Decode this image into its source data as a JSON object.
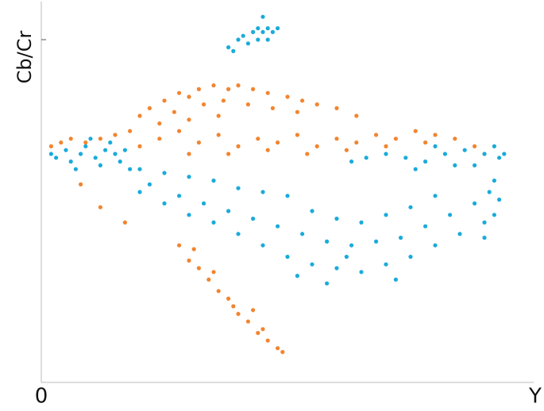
{
  "chart_data": {
    "type": "scatter",
    "ylabel": "Cb/Cr",
    "xlabel": "Y",
    "xlim": [
      0,
      1
    ],
    "ylim": [
      0,
      1
    ],
    "xticks": [
      0
    ],
    "yticks": [
      0.9
    ],
    "series": [
      {
        "color": "#f28530",
        "x": [
          0.22,
          0.25,
          0.28,
          0.3,
          0.32,
          0.35,
          0.38,
          0.4,
          0.43,
          0.46,
          0.5,
          0.53,
          0.56,
          0.6,
          0.64,
          0.27,
          0.33,
          0.37,
          0.42,
          0.47,
          0.52,
          0.3,
          0.36,
          0.24,
          0.2,
          0.24,
          0.28,
          0.32,
          0.36,
          0.4,
          0.44,
          0.48,
          0.52,
          0.56,
          0.6,
          0.64,
          0.68,
          0.72,
          0.76,
          0.8,
          0.84,
          0.88,
          0.9,
          0.3,
          0.38,
          0.46,
          0.54,
          0.62,
          0.7,
          0.78,
          0.02,
          0.04,
          0.06,
          0.09,
          0.12,
          0.15,
          0.18,
          0.2,
          0.08,
          0.12,
          0.17,
          0.28,
          0.3,
          0.32,
          0.34,
          0.36,
          0.38,
          0.4,
          0.42,
          0.44,
          0.46,
          0.48,
          0.49,
          0.45,
          0.43,
          0.39,
          0.35,
          0.31
        ],
        "values": [
          0.72,
          0.74,
          0.76,
          0.75,
          0.77,
          0.78,
          0.77,
          0.78,
          0.77,
          0.76,
          0.75,
          0.74,
          0.73,
          0.72,
          0.7,
          0.71,
          0.73,
          0.74,
          0.73,
          0.72,
          0.71,
          0.69,
          0.7,
          0.68,
          0.7,
          0.64,
          0.66,
          0.63,
          0.65,
          0.62,
          0.64,
          0.63,
          0.65,
          0.62,
          0.64,
          0.63,
          0.65,
          0.64,
          0.66,
          0.65,
          0.64,
          0.62,
          0.6,
          0.6,
          0.6,
          0.61,
          0.6,
          0.61,
          0.62,
          0.63,
          0.62,
          0.63,
          0.64,
          0.63,
          0.64,
          0.65,
          0.66,
          0.62,
          0.52,
          0.46,
          0.42,
          0.36,
          0.32,
          0.3,
          0.27,
          0.24,
          0.22,
          0.18,
          0.16,
          0.13,
          0.11,
          0.09,
          0.08,
          0.14,
          0.19,
          0.2,
          0.29,
          0.35
        ]
      },
      {
        "color": "#1aabdb",
        "x": [
          0.38,
          0.4,
          0.41,
          0.43,
          0.44,
          0.45,
          0.46,
          0.47,
          0.48,
          0.42,
          0.44,
          0.46,
          0.45,
          0.39,
          0.02,
          0.03,
          0.05,
          0.06,
          0.08,
          0.09,
          0.1,
          0.11,
          0.12,
          0.13,
          0.14,
          0.15,
          0.16,
          0.17,
          0.18,
          0.07,
          0.2,
          0.25,
          0.3,
          0.35,
          0.4,
          0.45,
          0.5,
          0.2,
          0.25,
          0.3,
          0.35,
          0.4,
          0.45,
          0.5,
          0.55,
          0.6,
          0.65,
          0.7,
          0.75,
          0.8,
          0.85,
          0.9,
          0.22,
          0.28,
          0.33,
          0.38,
          0.43,
          0.48,
          0.53,
          0.58,
          0.63,
          0.68,
          0.73,
          0.78,
          0.83,
          0.88,
          0.55,
          0.6,
          0.65,
          0.7,
          0.75,
          0.8,
          0.62,
          0.58,
          0.72,
          0.52,
          0.63,
          0.66,
          0.7,
          0.74,
          0.78,
          0.82,
          0.86,
          0.9,
          0.93,
          0.94,
          0.92,
          0.88,
          0.84,
          0.76,
          0.8,
          0.92,
          0.93,
          0.92,
          0.91,
          0.9
        ],
        "values": [
          0.88,
          0.9,
          0.91,
          0.92,
          0.93,
          0.92,
          0.93,
          0.92,
          0.93,
          0.89,
          0.9,
          0.9,
          0.96,
          0.87,
          0.6,
          0.59,
          0.61,
          0.58,
          0.6,
          0.62,
          0.64,
          0.59,
          0.57,
          0.61,
          0.63,
          0.6,
          0.58,
          0.61,
          0.56,
          0.56,
          0.56,
          0.55,
          0.54,
          0.53,
          0.51,
          0.5,
          0.49,
          0.5,
          0.47,
          0.44,
          0.42,
          0.39,
          0.36,
          0.33,
          0.31,
          0.3,
          0.29,
          0.31,
          0.33,
          0.36,
          0.39,
          0.42,
          0.52,
          0.49,
          0.47,
          0.45,
          0.43,
          0.41,
          0.39,
          0.37,
          0.36,
          0.37,
          0.38,
          0.41,
          0.44,
          0.47,
          0.45,
          0.43,
          0.42,
          0.44,
          0.46,
          0.49,
          0.33,
          0.26,
          0.27,
          0.28,
          0.58,
          0.59,
          0.6,
          0.59,
          0.58,
          0.6,
          0.61,
          0.6,
          0.59,
          0.6,
          0.62,
          0.57,
          0.57,
          0.56,
          0.62,
          0.53,
          0.48,
          0.44,
          0.5,
          0.38
        ]
      }
    ]
  }
}
